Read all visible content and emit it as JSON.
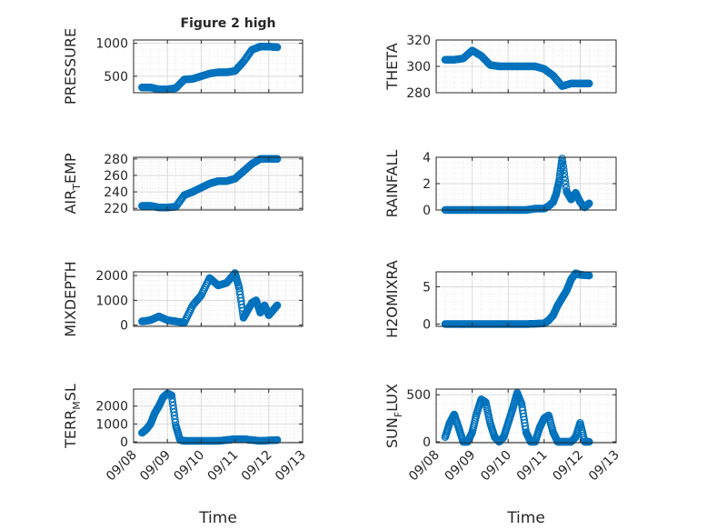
{
  "figure_title": "Figure 2 high",
  "shared_xlabel": "Time",
  "marker_color": "#0072BD",
  "chart_data": [
    {
      "type": "scatter",
      "ylabel": {
        "main": "PRESSURE",
        "sub": ""
      },
      "ylim": [
        250,
        1050
      ],
      "yticks": [
        500,
        1000
      ],
      "yticklabels": [
        "500",
        "1000"
      ],
      "x_ticklabels_visible": false,
      "x": [
        "09/08 06:00",
        "09/08 12:00",
        "09/08 18:00",
        "09/09 00:00",
        "09/09 06:00",
        "09/09 12:00",
        "09/09 18:00",
        "09/10 00:00",
        "09/10 06:00",
        "09/10 12:00",
        "09/10 18:00",
        "09/11 00:00",
        "09/11 06:00",
        "09/11 12:00",
        "09/11 18:00",
        "09/12 00:00",
        "09/12 06:00"
      ],
      "y": [
        330,
        330,
        300,
        300,
        320,
        450,
        460,
        500,
        540,
        560,
        560,
        580,
        720,
        900,
        950,
        950,
        940
      ]
    },
    {
      "type": "scatter",
      "ylabel": {
        "main": "THETA",
        "sub": ""
      },
      "ylim": [
        280,
        320
      ],
      "yticks": [
        280,
        300,
        320
      ],
      "yticklabels": [
        "280",
        "300",
        "320"
      ],
      "x_ticklabels_visible": false,
      "x": [
        "09/08 06:00",
        "09/08 12:00",
        "09/08 18:00",
        "09/09 00:00",
        "09/09 06:00",
        "09/09 12:00",
        "09/09 18:00",
        "09/10 00:00",
        "09/10 06:00",
        "09/10 12:00",
        "09/10 18:00",
        "09/11 00:00",
        "09/11 06:00",
        "09/11 12:00",
        "09/11 18:00",
        "09/12 00:00",
        "09/12 06:00"
      ],
      "y": [
        305,
        305,
        306,
        312,
        308,
        301,
        300,
        300,
        300,
        300,
        300,
        298,
        293,
        285,
        287,
        287,
        287
      ]
    },
    {
      "type": "scatter",
      "ylabel": {
        "main": "AIR",
        "sub": "T",
        "rest": "EMP"
      },
      "ylim": [
        218,
        282
      ],
      "yticks": [
        220,
        240,
        260,
        280
      ],
      "yticklabels": [
        "220",
        "240",
        "260",
        "280"
      ],
      "x_ticklabels_visible": false,
      "x": [
        "09/08 06:00",
        "09/08 12:00",
        "09/08 18:00",
        "09/09 00:00",
        "09/09 06:00",
        "09/09 12:00",
        "09/09 18:00",
        "09/10 00:00",
        "09/10 06:00",
        "09/10 12:00",
        "09/10 18:00",
        "09/11 00:00",
        "09/11 06:00",
        "09/11 12:00",
        "09/11 18:00",
        "09/12 00:00",
        "09/12 06:00"
      ],
      "y": [
        223,
        223,
        221,
        221,
        222,
        236,
        240,
        245,
        250,
        253,
        253,
        256,
        265,
        274,
        280,
        280,
        280
      ]
    },
    {
      "type": "scatter",
      "ylabel": {
        "main": "RAINFALL",
        "sub": ""
      },
      "ylim": [
        0,
        4
      ],
      "yticks": [
        0,
        2,
        4
      ],
      "yticklabels": [
        "0",
        "2",
        "4"
      ],
      "x_ticklabels_visible": false,
      "x": [
        "09/08 06:00",
        "09/08 12:00",
        "09/08 18:00",
        "09/09 00:00",
        "09/09 06:00",
        "09/09 12:00",
        "09/09 18:00",
        "09/10 00:00",
        "09/10 06:00",
        "09/10 12:00",
        "09/10 18:00",
        "09/11 00:00",
        "09/11 03:00",
        "09/11 06:00",
        "09/11 08:00",
        "09/11 10:00",
        "09/11 12:00",
        "09/11 15:00",
        "09/11 18:00",
        "09/11 21:00",
        "09/12 00:00",
        "09/12 03:00",
        "09/12 06:00"
      ],
      "y": [
        0,
        0,
        0,
        0,
        0,
        0,
        0,
        0,
        0,
        0,
        0.1,
        0.1,
        0.3,
        0.6,
        1.2,
        2.2,
        3.9,
        1.4,
        0.8,
        1.3,
        0.6,
        0.2,
        0.5
      ]
    },
    {
      "type": "scatter",
      "ylabel": {
        "main": "MIXDEPTH",
        "sub": ""
      },
      "ylim": [
        -50,
        2150
      ],
      "yticks": [
        0,
        1000,
        2000
      ],
      "yticklabels": [
        "0",
        "1000",
        "2000"
      ],
      "x_ticklabels_visible": false,
      "x": [
        "09/08 06:00",
        "09/08 12:00",
        "09/08 18:00",
        "09/09 00:00",
        "09/09 06:00",
        "09/09 12:00",
        "09/09 18:00",
        "09/10 00:00",
        "09/10 06:00",
        "09/10 12:00",
        "09/10 18:00",
        "09/11 00:00",
        "09/11 03:00",
        "09/11 06:00",
        "09/11 09:00",
        "09/11 12:00",
        "09/11 15:00",
        "09/11 18:00",
        "09/11 21:00",
        "09/12 00:00",
        "09/12 03:00",
        "09/12 06:00"
      ],
      "y": [
        150,
        200,
        350,
        200,
        150,
        100,
        800,
        1200,
        1900,
        1600,
        1700,
        2100,
        1500,
        300,
        600,
        900,
        1000,
        500,
        800,
        400,
        600,
        800
      ]
    },
    {
      "type": "scatter",
      "ylabel": {
        "main": "H2OMIXRA",
        "sub": ""
      },
      "ylim": [
        -0.3,
        7
      ],
      "yticks": [
        0,
        5
      ],
      "yticklabels": [
        "0",
        "5"
      ],
      "x_ticklabels_visible": false,
      "x": [
        "09/08 06:00",
        "09/08 12:00",
        "09/08 18:00",
        "09/09 00:00",
        "09/09 06:00",
        "09/09 12:00",
        "09/09 18:00",
        "09/10 00:00",
        "09/10 06:00",
        "09/10 12:00",
        "09/10 18:00",
        "09/11 00:00",
        "09/11 03:00",
        "09/11 06:00",
        "09/11 09:00",
        "09/11 12:00",
        "09/11 15:00",
        "09/11 18:00",
        "09/11 21:00",
        "09/12 00:00",
        "09/12 06:00"
      ],
      "y": [
        0,
        0,
        0,
        0,
        0,
        0,
        0,
        0,
        0,
        0,
        0.05,
        0.1,
        0.5,
        1.2,
        2.5,
        3.5,
        4.5,
        6.0,
        6.8,
        6.6,
        6.5
      ]
    },
    {
      "type": "scatter",
      "ylabel": {
        "main": "TERR",
        "sub": "M",
        "rest": "SL"
      },
      "ylim": [
        -50,
        2950
      ],
      "yticks": [
        0,
        1000,
        2000
      ],
      "yticklabels": [
        "0",
        "1000",
        "2000"
      ],
      "x_ticklabels_visible": true,
      "xticklabels": [
        "09/08",
        "09/09",
        "09/10",
        "09/11",
        "09/12",
        "09/13"
      ],
      "xlabel": "Time",
      "x": [
        "09/08 06:00",
        "09/08 09:00",
        "09/08 12:00",
        "09/08 15:00",
        "09/08 18:00",
        "09/08 21:00",
        "09/09 00:00",
        "09/09 03:00",
        "09/09 06:00",
        "09/09 09:00",
        "09/09 12:00",
        "09/09 18:00",
        "09/10 00:00",
        "09/10 06:00",
        "09/10 12:00",
        "09/10 18:00",
        "09/11 00:00",
        "09/11 06:00",
        "09/11 12:00",
        "09/11 18:00",
        "09/12 00:00",
        "09/12 06:00"
      ],
      "y": [
        500,
        700,
        1000,
        1600,
        2000,
        2500,
        2700,
        2600,
        900,
        100,
        50,
        50,
        50,
        50,
        50,
        100,
        150,
        150,
        100,
        50,
        80,
        100
      ]
    },
    {
      "type": "scatter",
      "ylabel": {
        "main": "SUN",
        "sub": "F",
        "rest": "LUX"
      },
      "ylim": [
        -10,
        560
      ],
      "yticks": [
        0,
        500
      ],
      "yticklabels": [
        "0",
        "500"
      ],
      "x_ticklabels_visible": true,
      "xticklabels": [
        "09/08",
        "09/09",
        "09/10",
        "09/11",
        "09/12",
        "09/13"
      ],
      "xlabel": "Time",
      "x": [
        "09/08 06:00",
        "09/08 09:00",
        "09/08 12:00",
        "09/08 15:00",
        "09/08 18:00",
        "09/08 21:00",
        "09/09 00:00",
        "09/09 03:00",
        "09/09 06:00",
        "09/09 09:00",
        "09/09 12:00",
        "09/09 15:00",
        "09/09 18:00",
        "09/09 21:00",
        "09/10 00:00",
        "09/10 03:00",
        "09/10 06:00",
        "09/10 09:00",
        "09/10 12:00",
        "09/10 15:00",
        "09/10 18:00",
        "09/10 21:00",
        "09/11 00:00",
        "09/11 03:00",
        "09/11 06:00",
        "09/11 09:00",
        "09/11 12:00",
        "09/11 15:00",
        "09/11 18:00",
        "09/11 21:00",
        "09/12 00:00",
        "09/12 03:00",
        "09/12 06:00"
      ],
      "y": [
        50,
        200,
        290,
        150,
        0,
        0,
        100,
        300,
        450,
        420,
        200,
        50,
        0,
        50,
        200,
        350,
        520,
        400,
        100,
        0,
        0,
        150,
        250,
        280,
        100,
        0,
        0,
        0,
        0,
        50,
        200,
        0,
        0
      ]
    }
  ]
}
